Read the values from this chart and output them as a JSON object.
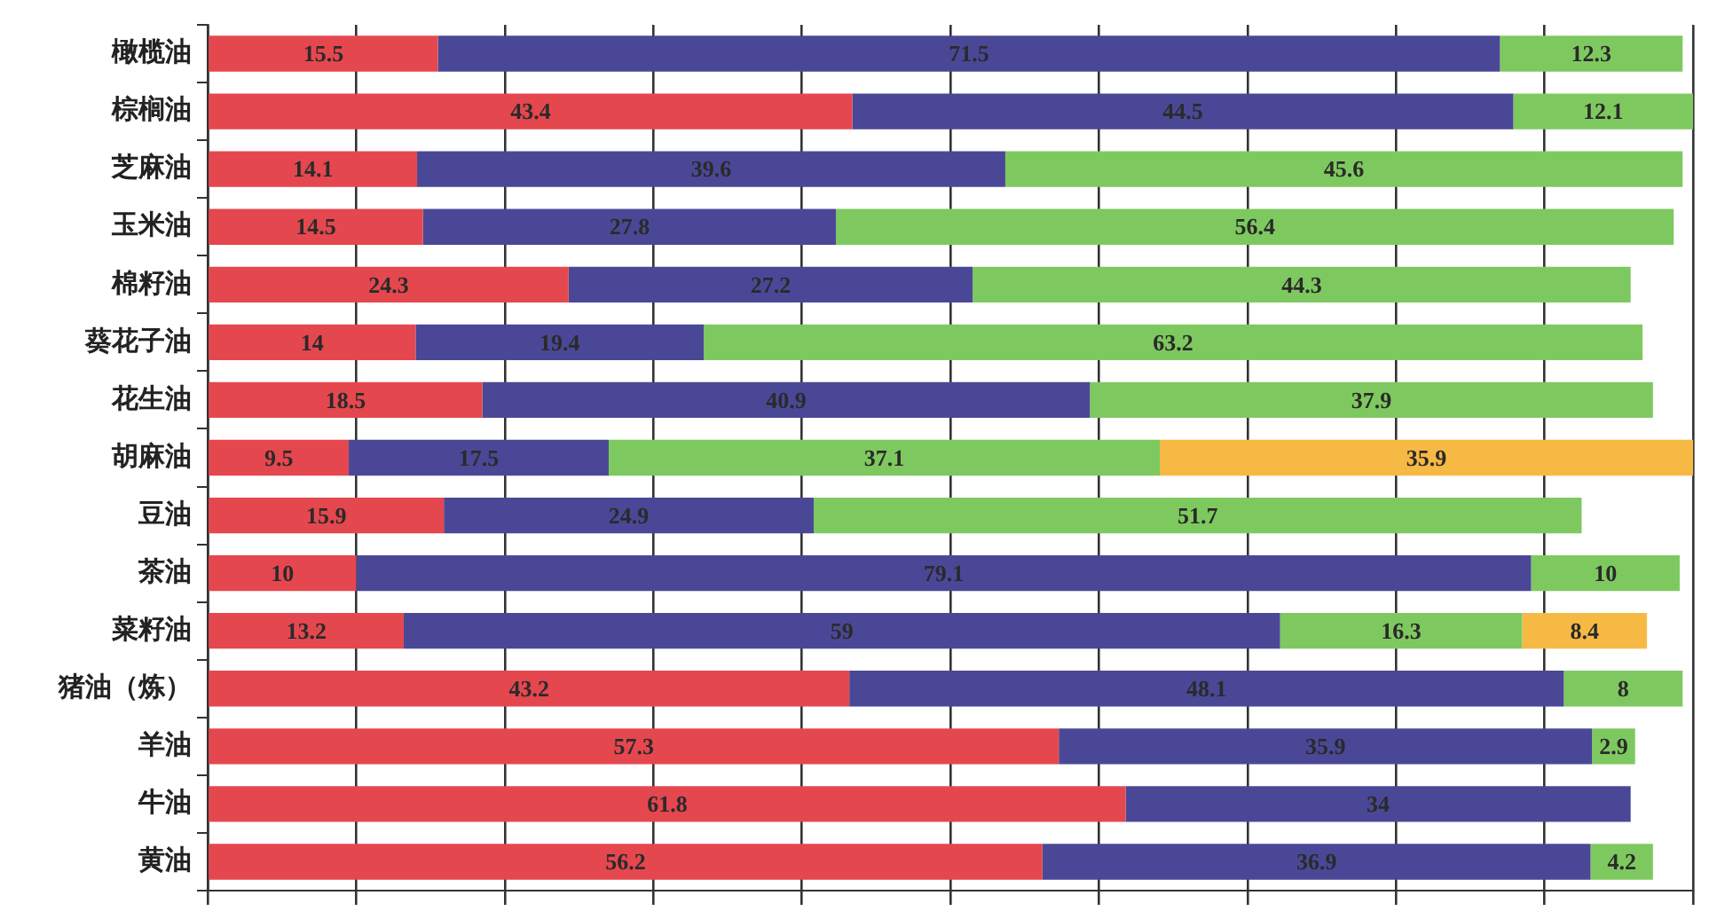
{
  "chart_data": {
    "type": "bar",
    "orientation": "horizontal",
    "stacked": true,
    "categories": [
      "橄榄油",
      "棕榈油",
      "芝麻油",
      "玉米油",
      "棉籽油",
      "葵花子油",
      "花生油",
      "胡麻油",
      "豆油",
      "茶油",
      "菜籽油",
      "猪油（炼）",
      "羊油",
      "牛油",
      "黄油"
    ],
    "series": [
      {
        "color": "#e5474f",
        "values": [
          15.5,
          43.4,
          14.1,
          14.5,
          24.3,
          14,
          18.5,
          9.5,
          15.9,
          10,
          13.2,
          43.2,
          57.3,
          61.8,
          56.2
        ]
      },
      {
        "color": "#4a4896",
        "values": [
          71.5,
          44.5,
          39.6,
          27.8,
          27.2,
          19.4,
          40.9,
          17.5,
          24.9,
          79.1,
          59,
          48.1,
          35.9,
          34,
          36.9
        ]
      },
      {
        "color": "#7ec95f",
        "values": [
          12.3,
          12.1,
          45.6,
          56.4,
          44.3,
          63.2,
          37.9,
          37.1,
          51.7,
          10,
          16.3,
          8,
          2.9,
          null,
          4.2
        ]
      },
      {
        "color": "#f6b944",
        "values": [
          null,
          null,
          null,
          null,
          null,
          null,
          null,
          35.9,
          null,
          null,
          8.4,
          null,
          null,
          null,
          null
        ]
      }
    ],
    "xlim": [
      0,
      100
    ],
    "xticks": [
      {
        "value": 0,
        "label": null
      },
      {
        "value": 10,
        "label": null
      },
      {
        "value": 20,
        "label": null
      },
      {
        "value": 30,
        "label": null
      },
      {
        "value": 40,
        "label": null
      },
      {
        "value": 50,
        "label": null
      },
      {
        "value": 60,
        "label": null
      },
      {
        "value": 70,
        "label": null
      },
      {
        "value": 80,
        "label": null
      },
      {
        "value": 90,
        "label": null
      },
      {
        "value": 100,
        "label": null
      }
    ],
    "tick_labels": "y",
    "grid": "x",
    "data_labels": true,
    "legend": false
  }
}
